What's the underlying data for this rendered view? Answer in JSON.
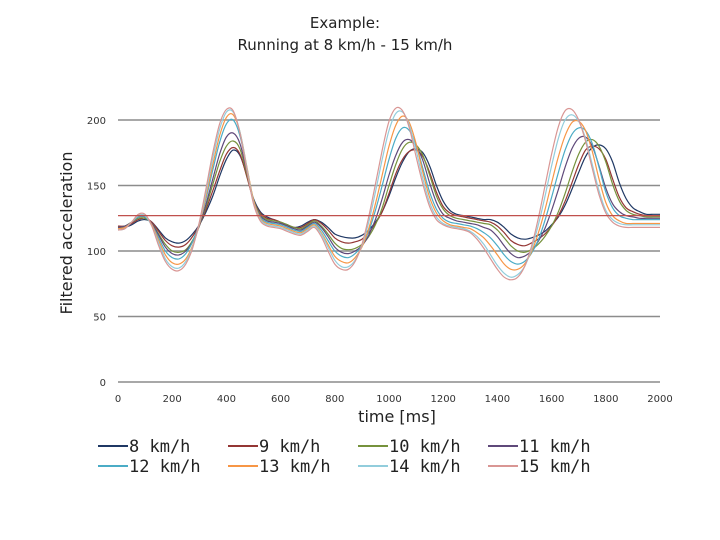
{
  "chart_data": {
    "type": "line",
    "title": "Example:",
    "subtitle": "Running at 8 km/h - 15 km/h",
    "xlabel": "time [ms]",
    "ylabel": "Filtered acceleration",
    "xlim": [
      0,
      2000
    ],
    "ylim": [
      0,
      200
    ],
    "x_ticks": [
      "0",
      "200",
      "400",
      "600",
      "800",
      "1000",
      "1200",
      "1400",
      "1600",
      "1800",
      "2000"
    ],
    "y_ticks": [
      "0",
      "50",
      "100",
      "150",
      "200"
    ],
    "grid": true,
    "legend_position": "bottom",
    "reference_line": {
      "y": 127,
      "color": "#c0504d"
    },
    "x": [
      0,
      25,
      50,
      75,
      100,
      125,
      150,
      175,
      200,
      225,
      250,
      275,
      300,
      325,
      350,
      375,
      400,
      425,
      450,
      475,
      500,
      525,
      550,
      575,
      600,
      625,
      650,
      675,
      700,
      725,
      750,
      775,
      800,
      825,
      850,
      875,
      900,
      925,
      950,
      975,
      1000,
      1025,
      1050,
      1075,
      1100,
      1125,
      1150,
      1175,
      1200,
      1225,
      1250,
      1275,
      1300,
      1325,
      1350,
      1375,
      1400,
      1425,
      1450,
      1475,
      1500,
      1525,
      1550,
      1575,
      1600,
      1625,
      1650,
      1675,
      1700,
      1725,
      1750,
      1775,
      1800,
      1825,
      1850,
      1875,
      1900,
      1925,
      1950,
      1975,
      2000
    ],
    "series": [
      {
        "name": "8 km/h",
        "color": "#1f3864",
        "values": [
          118,
          118,
          120,
          123,
          124,
          122,
          116,
          110,
          107,
          106,
          108,
          113,
          120,
          130,
          142,
          157,
          170,
          177,
          173,
          158,
          140,
          130,
          126,
          124,
          122,
          120,
          118,
          119,
          122,
          124,
          122,
          118,
          113,
          111,
          110,
          110,
          112,
          116,
          122,
          130,
          142,
          156,
          168,
          176,
          178,
          175,
          165,
          150,
          138,
          131,
          128,
          127,
          126,
          125,
          124,
          124,
          122,
          118,
          113,
          110,
          109,
          110,
          112,
          115,
          120,
          126,
          135,
          147,
          160,
          172,
          179,
          181,
          178,
          168,
          152,
          140,
          133,
          130,
          128,
          128,
          128
        ]
      },
      {
        "name": "9 km/h",
        "color": "#943634",
        "values": [
          119,
          119,
          121,
          124,
          125,
          122,
          115,
          108,
          104,
          103,
          105,
          111,
          120,
          132,
          146,
          161,
          174,
          179,
          174,
          157,
          139,
          129,
          125,
          124,
          122,
          120,
          118,
          118,
          121,
          124,
          121,
          116,
          110,
          107,
          106,
          107,
          109,
          114,
          121,
          130,
          144,
          159,
          170,
          176,
          177,
          172,
          160,
          145,
          134,
          129,
          127,
          126,
          125,
          124,
          123,
          122,
          119,
          114,
          108,
          105,
          104,
          106,
          109,
          113,
          119,
          127,
          138,
          152,
          166,
          177,
          180,
          178,
          170,
          155,
          141,
          133,
          130,
          128,
          127,
          127,
          127
        ]
      },
      {
        "name": "10 km/h",
        "color": "#76923c",
        "values": [
          118,
          119,
          122,
          125,
          125,
          121,
          113,
          105,
          100,
          99,
          101,
          108,
          119,
          134,
          151,
          168,
          180,
          184,
          178,
          159,
          139,
          128,
          124,
          123,
          122,
          120,
          118,
          117,
          120,
          123,
          119,
          113,
          106,
          102,
          101,
          102,
          105,
          111,
          120,
          133,
          150,
          166,
          178,
          183,
          181,
          173,
          158,
          142,
          132,
          127,
          125,
          124,
          123,
          122,
          121,
          120,
          116,
          110,
          104,
          100,
          99,
          101,
          105,
          111,
          119,
          130,
          144,
          160,
          174,
          183,
          185,
          180,
          168,
          151,
          138,
          131,
          128,
          127,
          126,
          126,
          126
        ]
      },
      {
        "name": "11 km/h",
        "color": "#5f497a",
        "values": [
          118,
          119,
          122,
          126,
          126,
          121,
          112,
          103,
          98,
          97,
          100,
          107,
          119,
          136,
          155,
          174,
          187,
          190,
          182,
          161,
          139,
          127,
          123,
          122,
          121,
          119,
          117,
          116,
          119,
          122,
          118,
          111,
          103,
          99,
          98,
          100,
          104,
          112,
          124,
          140,
          158,
          173,
          183,
          185,
          180,
          169,
          152,
          137,
          128,
          125,
          123,
          122,
          121,
          120,
          118,
          116,
          111,
          104,
          98,
          95,
          96,
          100,
          107,
          117,
          131,
          147,
          164,
          178,
          186,
          187,
          180,
          165,
          148,
          136,
          130,
          127,
          126,
          125,
          125,
          125,
          125
        ]
      },
      {
        "name": "12 km/h",
        "color": "#4bacc6",
        "values": [
          117,
          118,
          122,
          126,
          126,
          120,
          110,
          100,
          95,
          94,
          98,
          107,
          121,
          140,
          162,
          183,
          197,
          200,
          188,
          164,
          139,
          126,
          122,
          121,
          120,
          118,
          116,
          115,
          118,
          121,
          116,
          108,
          100,
          96,
          95,
          98,
          104,
          115,
          131,
          150,
          170,
          186,
          194,
          192,
          181,
          163,
          145,
          132,
          125,
          122,
          121,
          120,
          119,
          117,
          114,
          110,
          104,
          97,
          92,
          90,
          92,
          98,
          108,
          123,
          141,
          160,
          177,
          189,
          194,
          192,
          182,
          164,
          145,
          133,
          127,
          125,
          124,
          124,
          124,
          124,
          124
        ]
      },
      {
        "name": "13 km/h",
        "color": "#f79646",
        "values": [
          117,
          118,
          122,
          127,
          127,
          120,
          108,
          97,
          91,
          90,
          94,
          104,
          120,
          142,
          166,
          188,
          202,
          204,
          191,
          165,
          139,
          125,
          121,
          120,
          119,
          117,
          115,
          114,
          117,
          120,
          114,
          105,
          96,
          92,
          91,
          95,
          103,
          117,
          136,
          158,
          180,
          196,
          203,
          198,
          182,
          160,
          141,
          129,
          123,
          120,
          119,
          118,
          117,
          114,
          110,
          104,
          97,
          90,
          86,
          86,
          90,
          99,
          113,
          131,
          152,
          172,
          188,
          198,
          199,
          192,
          176,
          155,
          137,
          127,
          123,
          121,
          121,
          121,
          121,
          121,
          121
        ]
      },
      {
        "name": "14 km/h",
        "color": "#92cddc",
        "values": [
          116,
          117,
          122,
          127,
          127,
          119,
          106,
          94,
          88,
          87,
          92,
          103,
          121,
          145,
          171,
          193,
          206,
          206,
          191,
          164,
          137,
          124,
          120,
          119,
          118,
          116,
          114,
          113,
          116,
          119,
          113,
          103,
          93,
          88,
          88,
          93,
          104,
          122,
          145,
          170,
          192,
          205,
          206,
          196,
          177,
          155,
          137,
          126,
          121,
          119,
          118,
          117,
          115,
          111,
          105,
          97,
          89,
          83,
          80,
          82,
          88,
          101,
          119,
          141,
          165,
          186,
          200,
          204,
          199,
          186,
          166,
          146,
          131,
          124,
          121,
          120,
          120,
          120,
          120,
          120,
          120
        ]
      },
      {
        "name": "15 km/h",
        "color": "#d99694",
        "values": [
          116,
          117,
          122,
          128,
          128,
          119,
          104,
          92,
          86,
          85,
          90,
          102,
          122,
          148,
          175,
          197,
          208,
          207,
          190,
          162,
          136,
          123,
          119,
          118,
          117,
          115,
          113,
          112,
          115,
          118,
          111,
          100,
          90,
          86,
          86,
          92,
          105,
          126,
          151,
          177,
          199,
          209,
          207,
          194,
          172,
          151,
          134,
          124,
          120,
          118,
          117,
          116,
          114,
          109,
          102,
          94,
          86,
          80,
          78,
          80,
          88,
          103,
          124,
          149,
          174,
          195,
          207,
          208,
          200,
          184,
          163,
          143,
          129,
          122,
          119,
          118,
          118,
          118,
          118,
          118,
          118
        ]
      }
    ]
  }
}
